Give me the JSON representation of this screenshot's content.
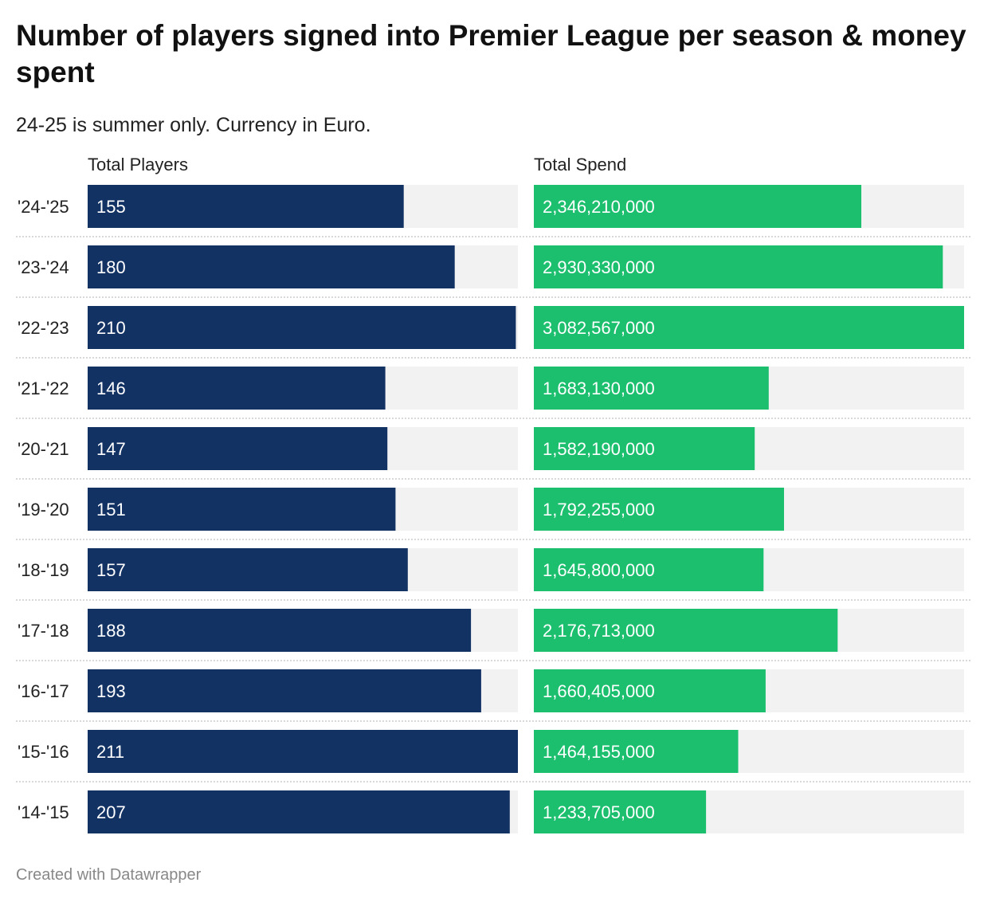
{
  "title": "Number of players signed into Premier League per season & money spent",
  "subtitle": "24-25 is summer only. Currency in Euro.",
  "footer": "Created with Datawrapper",
  "colors": {
    "players_bar": "#133264",
    "spend_bar": "#1bbf6e",
    "track": "#f2f2f2",
    "separator": "#cccccc"
  },
  "chart_data": {
    "type": "bar",
    "orientation": "horizontal",
    "categories": [
      "'24-'25",
      "'23-'24",
      "'22-'23",
      "'21-'22",
      "'20-'21",
      "'19-'20",
      "'18-'19",
      "'17-'18",
      "'16-'17",
      "'15-'16",
      "'14-'15"
    ],
    "series": [
      {
        "name": "Total Players",
        "values": [
          155,
          180,
          210,
          146,
          147,
          151,
          157,
          188,
          193,
          211,
          207
        ],
        "labels": [
          "155",
          "180",
          "210",
          "146",
          "147",
          "151",
          "157",
          "188",
          "193",
          "211",
          "207"
        ],
        "xlim": [
          0,
          211
        ]
      },
      {
        "name": "Total Spend",
        "values": [
          2346210000,
          2930330000,
          3082567000,
          1683130000,
          1582190000,
          1792255000,
          1645800000,
          2176713000,
          1660405000,
          1464155000,
          1233705000
        ],
        "labels": [
          "2,346,210,000",
          "2,930,330,000",
          "3,082,567,000",
          "1,683,130,000",
          "1,582,190,000",
          "1,792,255,000",
          "1,645,800,000",
          "2,176,713,000",
          "1,660,405,000",
          "1,464,155,000",
          "1,233,705,000"
        ],
        "xlim": [
          0,
          3082567000
        ]
      }
    ]
  }
}
